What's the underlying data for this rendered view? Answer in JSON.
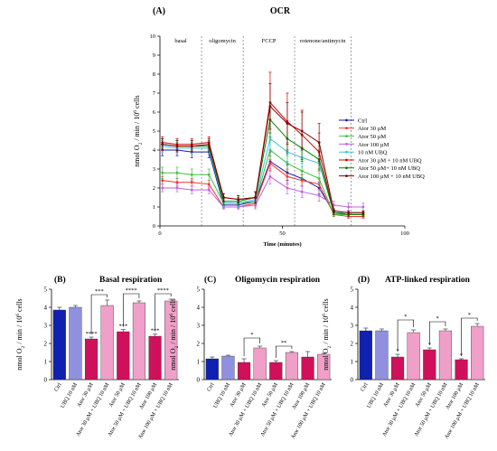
{
  "panel_a": {
    "letter": "(A)",
    "title": "OCR",
    "chart_data": {
      "type": "line",
      "xlabel": "Time (minutes)",
      "ylabel_main": "nmol O",
      "ylabel_sub": "2",
      "ylabel_mid": " / min / 10",
      "ylabel_sup": "6",
      "ylabel_end": " cells",
      "xlim": [
        0,
        100
      ],
      "ylim": [
        0,
        10
      ],
      "xticks": [
        0,
        50,
        100
      ],
      "yticks": [
        0,
        1,
        2,
        3,
        4,
        5,
        6,
        7,
        8,
        9,
        10
      ],
      "phases": [
        {
          "label": "basal",
          "start": 0
        },
        {
          "label": "oligomycin",
          "start": 17
        },
        {
          "label": "FCCP",
          "start": 34
        },
        {
          "label": "rotenone/antimycin",
          "start": 55
        }
      ],
      "phase_bounds": [
        17,
        34,
        55,
        78
      ],
      "x": [
        1,
        7,
        13,
        20,
        26,
        32,
        39,
        45,
        52,
        58,
        65,
        71,
        77,
        83
      ],
      "series": [
        {
          "name": "Ctrl",
          "color": "#1a1aa0",
          "values": [
            4.0,
            4.0,
            3.9,
            3.9,
            1.1,
            1.1,
            1.3,
            3.4,
            2.8,
            2.5,
            2.0,
            0.7,
            0.6,
            0.6
          ],
          "errors": [
            0.3,
            0.3,
            0.3,
            0.3,
            0.2,
            0.2,
            0.2,
            0.5,
            0.4,
            0.4,
            0.3,
            0.1,
            0.1,
            0.1
          ]
        },
        {
          "name": "Ator 30 µM",
          "color": "#ff3030",
          "values": [
            2.4,
            2.3,
            2.3,
            2.2,
            1.0,
            1.0,
            1.2,
            3.3,
            2.6,
            2.4,
            2.2,
            0.6,
            0.5,
            0.5
          ],
          "errors": [
            0.2,
            0.2,
            0.2,
            0.2,
            0.1,
            0.1,
            0.2,
            0.4,
            0.4,
            0.3,
            0.3,
            0.1,
            0.1,
            0.1
          ]
        },
        {
          "name": "Ator 50 µM",
          "color": "#40c040",
          "values": [
            2.8,
            2.8,
            2.7,
            2.7,
            1.2,
            1.2,
            1.3,
            4.0,
            3.3,
            2.9,
            2.5,
            0.6,
            0.6,
            0.6
          ],
          "errors": [
            0.3,
            0.3,
            0.3,
            0.3,
            0.2,
            0.2,
            0.2,
            0.5,
            0.4,
            0.4,
            0.3,
            0.1,
            0.1,
            0.1
          ]
        },
        {
          "name": "Ator 100 µM",
          "color": "#c060e0",
          "values": [
            2.0,
            2.0,
            1.9,
            1.9,
            1.0,
            1.0,
            1.1,
            2.6,
            2.0,
            1.8,
            1.6,
            1.1,
            1.0,
            1.0
          ],
          "errors": [
            0.2,
            0.2,
            0.2,
            0.2,
            0.1,
            0.1,
            0.2,
            0.4,
            0.3,
            0.3,
            0.3,
            0.2,
            0.2,
            0.2
          ]
        },
        {
          "name": "10 nM UBQ",
          "color": "#40c0e0",
          "values": [
            4.2,
            4.1,
            4.1,
            4.1,
            1.2,
            1.2,
            1.4,
            4.6,
            3.9,
            3.6,
            3.3,
            0.7,
            0.7,
            0.7
          ],
          "errors": [
            0.3,
            0.3,
            0.3,
            0.3,
            0.2,
            0.2,
            0.2,
            0.6,
            0.5,
            0.5,
            0.4,
            0.1,
            0.1,
            0.1
          ]
        },
        {
          "name": "Ator 30 µM + 10 nM UBQ",
          "color": "#d00000",
          "values": [
            4.4,
            4.3,
            4.3,
            4.4,
            1.5,
            1.4,
            1.5,
            6.5,
            5.5,
            4.8,
            3.9,
            0.7,
            0.6,
            0.6
          ],
          "errors": [
            0.3,
            0.3,
            0.3,
            0.3,
            0.2,
            0.2,
            0.3,
            1.6,
            1.5,
            1.3,
            1.0,
            0.1,
            0.1,
            0.1
          ]
        },
        {
          "name": "Ator 50 µM+ 10 nM UBQ",
          "color": "#008000",
          "values": [
            4.3,
            4.2,
            4.2,
            4.2,
            1.3,
            1.3,
            1.5,
            5.6,
            4.6,
            4.1,
            3.5,
            0.7,
            0.6,
            0.6
          ],
          "errors": [
            0.3,
            0.3,
            0.3,
            0.3,
            0.2,
            0.2,
            0.3,
            0.9,
            0.8,
            0.7,
            0.5,
            0.1,
            0.1,
            0.1
          ]
        },
        {
          "name": "Ator 100 µM + 10 nM UBQ",
          "color": "#800000",
          "values": [
            4.3,
            4.2,
            4.2,
            4.3,
            1.5,
            1.4,
            1.5,
            6.3,
            5.4,
            5.0,
            4.4,
            0.8,
            0.7,
            0.7
          ],
          "errors": [
            0.3,
            0.3,
            0.3,
            0.3,
            0.2,
            0.2,
            0.3,
            1.2,
            1.1,
            1.0,
            1.0,
            0.1,
            0.1,
            0.1
          ]
        }
      ]
    }
  },
  "bar_panels": [
    {
      "letter": "(B)",
      "title": "Basal respiration",
      "chart_data": {
        "type": "bar",
        "ylabel_main": "nmol O",
        "ylabel_sub": "2",
        "ylabel_mid": " / min / 10",
        "ylabel_sup": "6",
        "ylabel_end": " cells",
        "ylim": [
          0,
          5
        ],
        "yticks": [
          0,
          1,
          2,
          3,
          4,
          5
        ],
        "categories": [
          "Ctrl",
          "UBQ 10 nM",
          "Ator 30 µM",
          "Ator 30 µM + UBQ 10 nM",
          "Ator 50 µM",
          "Ator 50 µM + UBQ 10 nM",
          "Ator 100 µM",
          "Ator 100 µM + UBQ 10 nM"
        ],
        "values": [
          3.85,
          4.0,
          2.25,
          4.1,
          2.65,
          4.25,
          2.4,
          4.35
        ],
        "errors": [
          0.15,
          0.1,
          0.1,
          0.3,
          0.12,
          0.1,
          0.12,
          0.1
        ],
        "colors": [
          "#1020b0",
          "#9090e0",
          "#d0105a",
          "#f0a0c8",
          "#d0105a",
          "#f0a0c8",
          "#d0105a",
          "#f0a0c8"
        ],
        "stars": [
          "",
          "",
          "****",
          "",
          "***",
          "",
          "***",
          ""
        ],
        "brackets": [
          {
            "from": 2,
            "to": 3,
            "label": "***",
            "level": 4.7
          },
          {
            "from": 4,
            "to": 5,
            "label": "****",
            "level": 4.75
          },
          {
            "from": 6,
            "to": 7,
            "label": "****",
            "level": 4.75
          }
        ]
      }
    },
    {
      "letter": "(C)",
      "title": "Oligomycin respiration",
      "chart_data": {
        "type": "bar",
        "ylabel_main": "nmol O",
        "ylabel_sub": "2",
        "ylabel_mid": " / min / 10",
        "ylabel_sup": "6",
        "ylabel_end": " cells",
        "ylim": [
          0,
          5
        ],
        "yticks": [
          0,
          1,
          2,
          3,
          4,
          5
        ],
        "categories": [
          "Ctrl",
          "UBQ 10 nM",
          "Ator 30 µM",
          "Ator 30 µM + UBQ 10 nM",
          "Ator 50 µM",
          "Ator 50 µM + UBQ 10 nM",
          "Ator 100 µM",
          "Ator 100 µM + UBQ 10 nM"
        ],
        "values": [
          1.15,
          1.3,
          0.95,
          1.75,
          0.95,
          1.5,
          1.25,
          1.4
        ],
        "errors": [
          0.1,
          0.05,
          0.2,
          0.1,
          0.1,
          0.05,
          0.3,
          0.05
        ],
        "colors": [
          "#1020b0",
          "#9090e0",
          "#d0105a",
          "#f0a0c8",
          "#d0105a",
          "#f0a0c8",
          "#d0105a",
          "#f0a0c8"
        ],
        "stars": [
          "",
          "",
          "",
          "",
          "",
          "",
          "",
          ""
        ],
        "brackets": [
          {
            "from": 2,
            "to": 3,
            "label": "*",
            "level": 2.3
          },
          {
            "from": 4,
            "to": 5,
            "label": "**",
            "level": 1.85
          }
        ]
      }
    },
    {
      "letter": "(D)",
      "title": "ATP-linked respiration",
      "chart_data": {
        "type": "bar",
        "ylabel_main": "nmol O",
        "ylabel_sub": "2",
        "ylabel_mid": " / min / 10",
        "ylabel_sup": "6",
        "ylabel_end": " cells",
        "ylim": [
          0,
          5
        ],
        "yticks": [
          0,
          1,
          2,
          3,
          4,
          5
        ],
        "categories": [
          "Ctrl",
          "UBQ 10 nM",
          "Ator 30 µM",
          "Ator 30 µM + UBQ 10 nM",
          "Ator 50 µM",
          "Ator 50 µM + UBQ 10 nM",
          "Ator 100 µM",
          "Ator 100 µM + UBQ 10 nM"
        ],
        "values": [
          2.7,
          2.7,
          1.25,
          2.6,
          1.65,
          2.7,
          1.1,
          2.95
        ],
        "errors": [
          0.15,
          0.1,
          0.15,
          0.15,
          0.1,
          0.1,
          0.05,
          0.15
        ],
        "colors": [
          "#1020b0",
          "#9090e0",
          "#d0105a",
          "#f0a0c8",
          "#d0105a",
          "#f0a0c8",
          "#d0105a",
          "#f0a0c8"
        ],
        "stars": [
          "",
          "",
          "*",
          "",
          "*",
          "",
          "*",
          ""
        ],
        "brackets": [
          {
            "from": 2,
            "to": 3,
            "label": "*",
            "level": 3.3
          },
          {
            "from": 4,
            "to": 5,
            "label": "*",
            "level": 3.2
          },
          {
            "from": 6,
            "to": 7,
            "label": "*",
            "level": 3.4
          }
        ]
      }
    }
  ]
}
